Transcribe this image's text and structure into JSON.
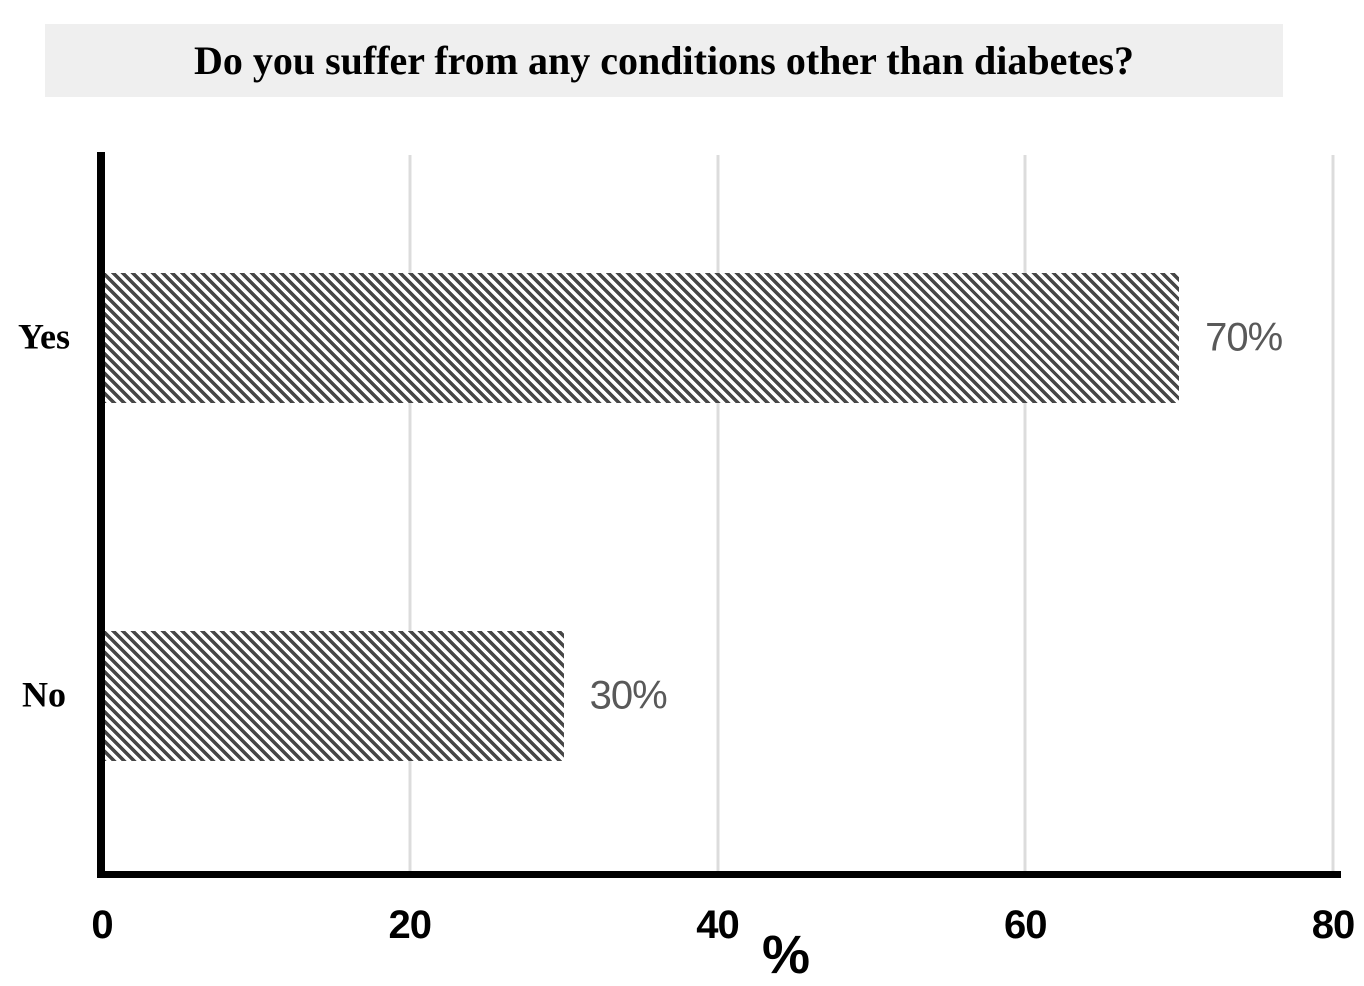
{
  "chart_data": {
    "type": "bar",
    "orientation": "horizontal",
    "title": "Do you suffer from any conditions other than diabetes?",
    "categories": [
      "Yes",
      "No"
    ],
    "values": [
      70,
      30
    ],
    "data_labels": [
      "70%",
      "30%"
    ],
    "xlabel": "%",
    "xlim": [
      0,
      80
    ],
    "x_ticks": [
      "0",
      "20",
      "40",
      "60",
      "80"
    ],
    "x_tick_values": [
      0,
      20,
      40,
      60,
      80
    ],
    "gridline_values": [
      20,
      40,
      60,
      80
    ],
    "legend": "none",
    "grid": "vertical-major-gridlines",
    "bar_fill_style": "dark-downward-diagonal-hatch",
    "colors": {
      "pattern_foreground": "#474747",
      "pattern_background": "#ffffff",
      "data_label": "#595959",
      "gridline": "#dcdcdc",
      "axis_line": "#000000",
      "title_background": "#efefef",
      "title_text": "#000000",
      "page_background": "#ffffff"
    }
  }
}
